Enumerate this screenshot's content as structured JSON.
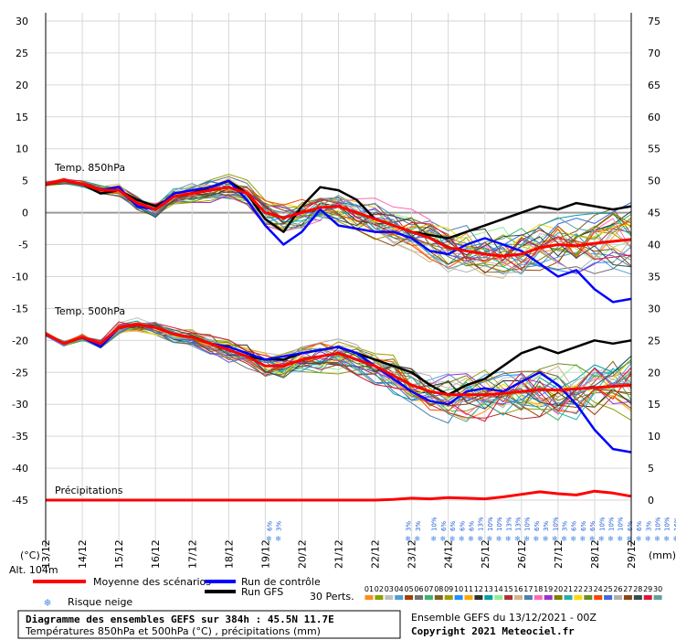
{
  "chart_data": {
    "type": "line",
    "title": "Diagramme des ensembles GEFS sur 384h : 45.5N 11.7E",
    "subtitle": "Températures 850hPa et 500hPa (°C) , précipitations (mm)",
    "left_axis_unit": "(°C)",
    "right_axis_unit": "(mm)",
    "left_ylim": [
      -45,
      30
    ],
    "right_ylim": [
      0,
      75
    ],
    "left_ticks": [
      "30",
      "25",
      "20",
      "15",
      "10",
      "5",
      "0",
      "-5",
      "-10",
      "-15",
      "-20",
      "-25",
      "-30",
      "-35",
      "-40",
      "-45"
    ],
    "right_ticks": [
      "75",
      "70",
      "65",
      "60",
      "55",
      "50",
      "45",
      "40",
      "35",
      "30",
      "25",
      "20",
      "15",
      "10",
      "5",
      "0"
    ],
    "x_labels": [
      "13/12",
      "14/12",
      "15/12",
      "16/12",
      "17/12",
      "18/12",
      "19/12",
      "20/12",
      "21/12",
      "22/12",
      "23/12",
      "24/12",
      "25/12",
      "26/12",
      "27/12",
      "28/12",
      "29/12"
    ],
    "panel_labels": {
      "t850": "Temp. 850hPa",
      "t500": "Temp. 500hPa",
      "precip": "Précipitations"
    },
    "altitude": "Alt. 104m",
    "legend": {
      "mean": "Moyenne des scénarios",
      "control": "Run de contrôle",
      "gfs": "Run GFS",
      "snow": "Risque neige",
      "perts": "30 Perts."
    },
    "colors": {
      "mean": "#ff0000",
      "control": "#0000ff",
      "gfs": "#000000"
    },
    "member_numbers": [
      "01",
      "02",
      "03",
      "04",
      "05",
      "06",
      "07",
      "08",
      "09",
      "10",
      "11",
      "12",
      "13",
      "14",
      "15",
      "16",
      "17",
      "18",
      "19",
      "20",
      "21",
      "22",
      "23",
      "24",
      "25",
      "26",
      "27",
      "28",
      "29",
      "30"
    ],
    "member_colors": [
      "#ff8c1a",
      "#8ca000",
      "#c0c0c0",
      "#4aa0d8",
      "#a04000",
      "#707070",
      "#3cb371",
      "#806020",
      "#9f9f00",
      "#1e90ff",
      "#ffa500",
      "#303030",
      "#00a0a0",
      "#90ee90",
      "#b03030",
      "#d2b48c",
      "#4682b4",
      "#ff69b4",
      "#9932cc",
      "#808000",
      "#20b2aa",
      "#ffd700",
      "#6b8e23",
      "#ff4500",
      "#4169e1",
      "#b0b0b0",
      "#8b4513",
      "#2f4f4f",
      "#dc143c",
      "#5f9ea0"
    ],
    "series": [
      {
        "name": "Moyenne des scénarios (850hPa)",
        "values": [
          4.5,
          5.0,
          4.5,
          3.5,
          3.5,
          1.5,
          0.5,
          2.5,
          3.0,
          3.5,
          4.0,
          3.0,
          0,
          -0.8,
          0,
          0.8,
          1.0,
          0,
          -1.0,
          -2.0,
          -3.0,
          -4.0,
          -5.5,
          -6.0,
          -6.5,
          -6.8,
          -6.5,
          -5.5,
          -5.0,
          -5.2,
          -4.8,
          -4.5,
          -4.2
        ]
      },
      {
        "name": "Run de contrôle (850hPa)",
        "values": [
          4.5,
          5.0,
          4.5,
          3.5,
          4.0,
          1.0,
          0.5,
          3.0,
          3.5,
          4.0,
          5.0,
          2.0,
          -2.0,
          -5.0,
          -3.0,
          0.5,
          -2.0,
          -2.5,
          -3.0,
          -3.0,
          -4.0,
          -6.0,
          -6.5,
          -5.0,
          -4.0,
          -5.0,
          -6.0,
          -8.0,
          -10.0,
          -9.0,
          -12.0,
          -14.0,
          -13.5
        ]
      },
      {
        "name": "Run GFS (850hPa)",
        "values": [
          4.5,
          5.0,
          4.5,
          3.0,
          3.5,
          2.0,
          1.0,
          2.5,
          3.0,
          4.0,
          5.0,
          3.0,
          -1.0,
          -3.0,
          1.0,
          4.0,
          3.5,
          2.0,
          -1.0,
          -2.0,
          -3.0,
          -3.5,
          -4.0,
          -3.0,
          -2.0,
          -1.0,
          0,
          1.0,
          0.5,
          1.5,
          1.0,
          0.5,
          1.0
        ]
      },
      {
        "name": "Moyenne des scénarios (500hPa)",
        "values": [
          -19,
          -20.5,
          -19.5,
          -20.5,
          -18,
          -17.5,
          -18,
          -19,
          -19.5,
          -20.5,
          -21.5,
          -22.5,
          -24,
          -24,
          -23,
          -22.5,
          -22,
          -23,
          -24,
          -25.5,
          -27,
          -28,
          -28.5,
          -28.5,
          -28.5,
          -28.3,
          -28,
          -27.7,
          -27.8,
          -27.6,
          -27.4,
          -27.2,
          -27.0
        ]
      },
      {
        "name": "Run de contrôle (500hPa)",
        "values": [
          -19,
          -20.5,
          -19.5,
          -21,
          -18,
          -17.5,
          -18,
          -19,
          -19.5,
          -20.5,
          -21,
          -22,
          -23,
          -22.5,
          -22,
          -21.5,
          -21,
          -22,
          -24,
          -26,
          -28,
          -29.5,
          -30,
          -28,
          -27.5,
          -28,
          -26.5,
          -25,
          -27,
          -30,
          -34,
          -37,
          -37.5
        ]
      },
      {
        "name": "Run GFS (500hPa)",
        "values": [
          -19,
          -20.5,
          -19.5,
          -21,
          -18,
          -17.5,
          -18,
          -19,
          -19.5,
          -20.5,
          -21.5,
          -22.5,
          -23,
          -23,
          -22,
          -21.5,
          -21,
          -22,
          -23,
          -24,
          -25,
          -27,
          -28.5,
          -27,
          -26,
          -24,
          -22,
          -21,
          -22,
          -21,
          -20,
          -20.5,
          -20
        ]
      },
      {
        "name": "Moyenne des scénarios (précipitations)",
        "values": [
          0,
          0,
          0,
          0,
          0,
          0,
          0,
          0,
          0,
          0,
          0,
          0,
          0,
          0,
          0,
          0,
          0,
          0,
          0,
          0.1,
          0.3,
          0.2,
          0.4,
          0.3,
          0.2,
          0.5,
          0.9,
          1.3,
          1.0,
          0.8,
          1.4,
          1.1,
          0.6
        ]
      }
    ],
    "snow_risk": [
      {
        "date_index": 6.1,
        "labels": [
          "6%",
          "3%"
        ]
      },
      {
        "date_index": 9.9,
        "labels": [
          "3%",
          "3%"
        ]
      },
      {
        "date_index": 10.6,
        "labels": [
          "10%",
          "6%",
          "6%",
          "6%",
          "6%",
          "13%",
          "10%",
          "10%",
          "13%",
          "13%",
          "10%",
          "6%",
          "3%",
          "10%",
          "3%",
          "6%",
          "6%",
          "6%",
          "10%",
          "10%",
          "10%",
          "6%",
          "6%",
          "3%",
          "10%",
          "10%",
          "16%"
        ]
      }
    ],
    "footer": {
      "ensemble": "Ensemble GEFS du 13/12/2021 - 00Z",
      "copyright": "Copyright 2021 Meteociel.fr"
    }
  }
}
